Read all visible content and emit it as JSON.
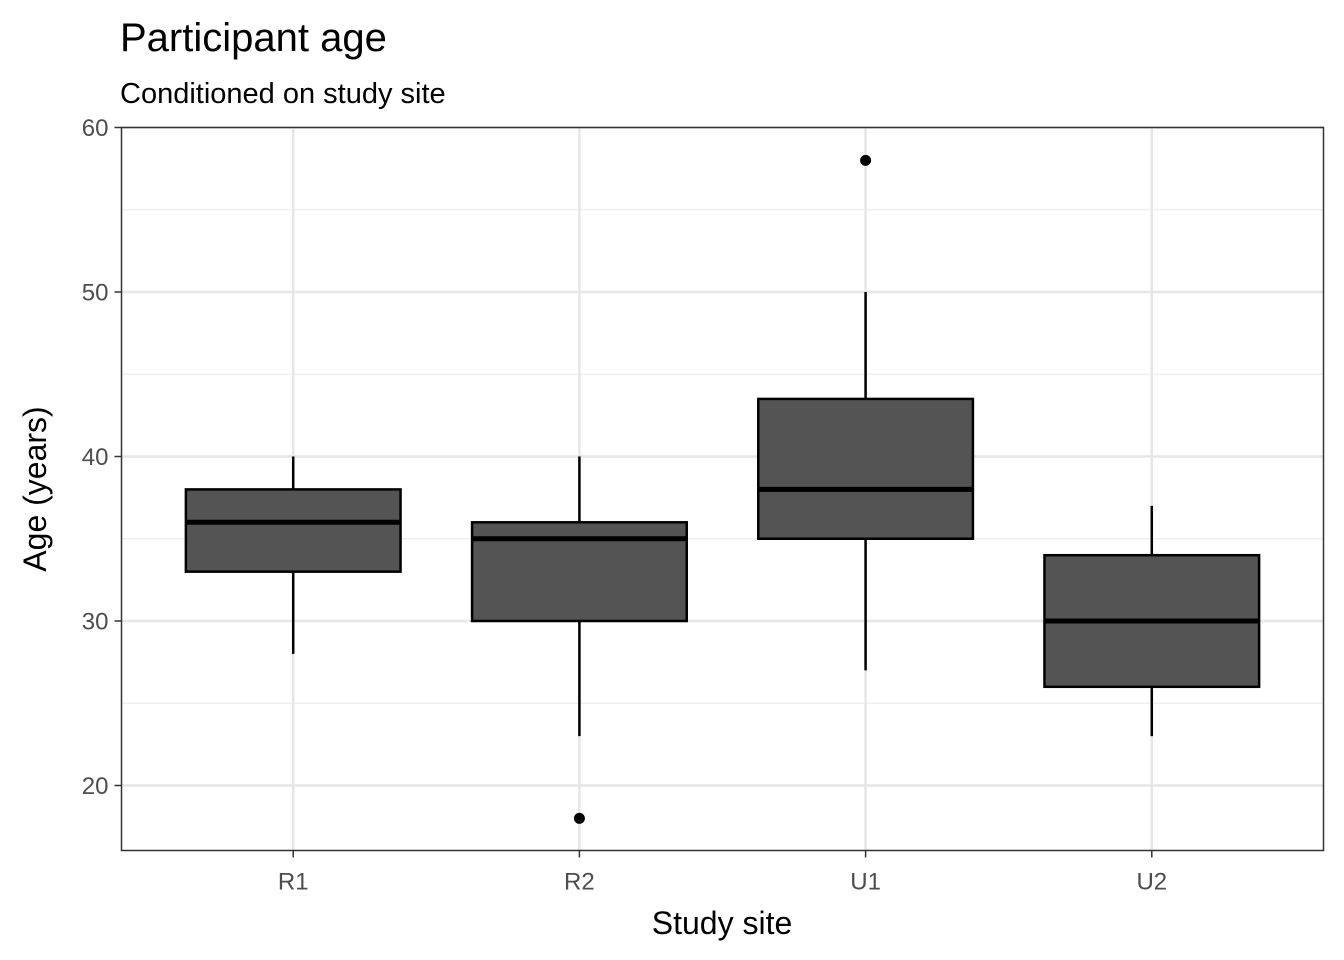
{
  "chart_data": {
    "type": "boxplot",
    "title": "Participant age",
    "subtitle": "Conditioned on study site",
    "xlabel": "Study site",
    "ylabel": "Age (years)",
    "ylim": [
      16,
      60
    ],
    "yticks": [
      20,
      30,
      40,
      50,
      60
    ],
    "grid": true,
    "categories": [
      "R1",
      "R2",
      "U1",
      "U2"
    ],
    "boxes": [
      {
        "category": "R1",
        "whisker_low": 28,
        "q1": 33,
        "median": 36,
        "q3": 38,
        "whisker_high": 40,
        "outliers": []
      },
      {
        "category": "R2",
        "whisker_low": 23,
        "q1": 30,
        "median": 35,
        "q3": 36,
        "whisker_high": 40,
        "outliers": [
          18
        ]
      },
      {
        "category": "U1",
        "whisker_low": 27,
        "q1": 35,
        "median": 38,
        "q3": 43.5,
        "whisker_high": 50,
        "outliers": [
          58
        ]
      },
      {
        "category": "U2",
        "whisker_low": 23,
        "q1": 26,
        "median": 30,
        "q3": 34,
        "whisker_high": 37,
        "outliers": []
      }
    ],
    "colors": {
      "box_fill": "#545454",
      "box_stroke": "#000000",
      "grid_major": "#e6e6e6",
      "grid_minor": "#f0f0f0",
      "panel_border": "#333333"
    }
  }
}
